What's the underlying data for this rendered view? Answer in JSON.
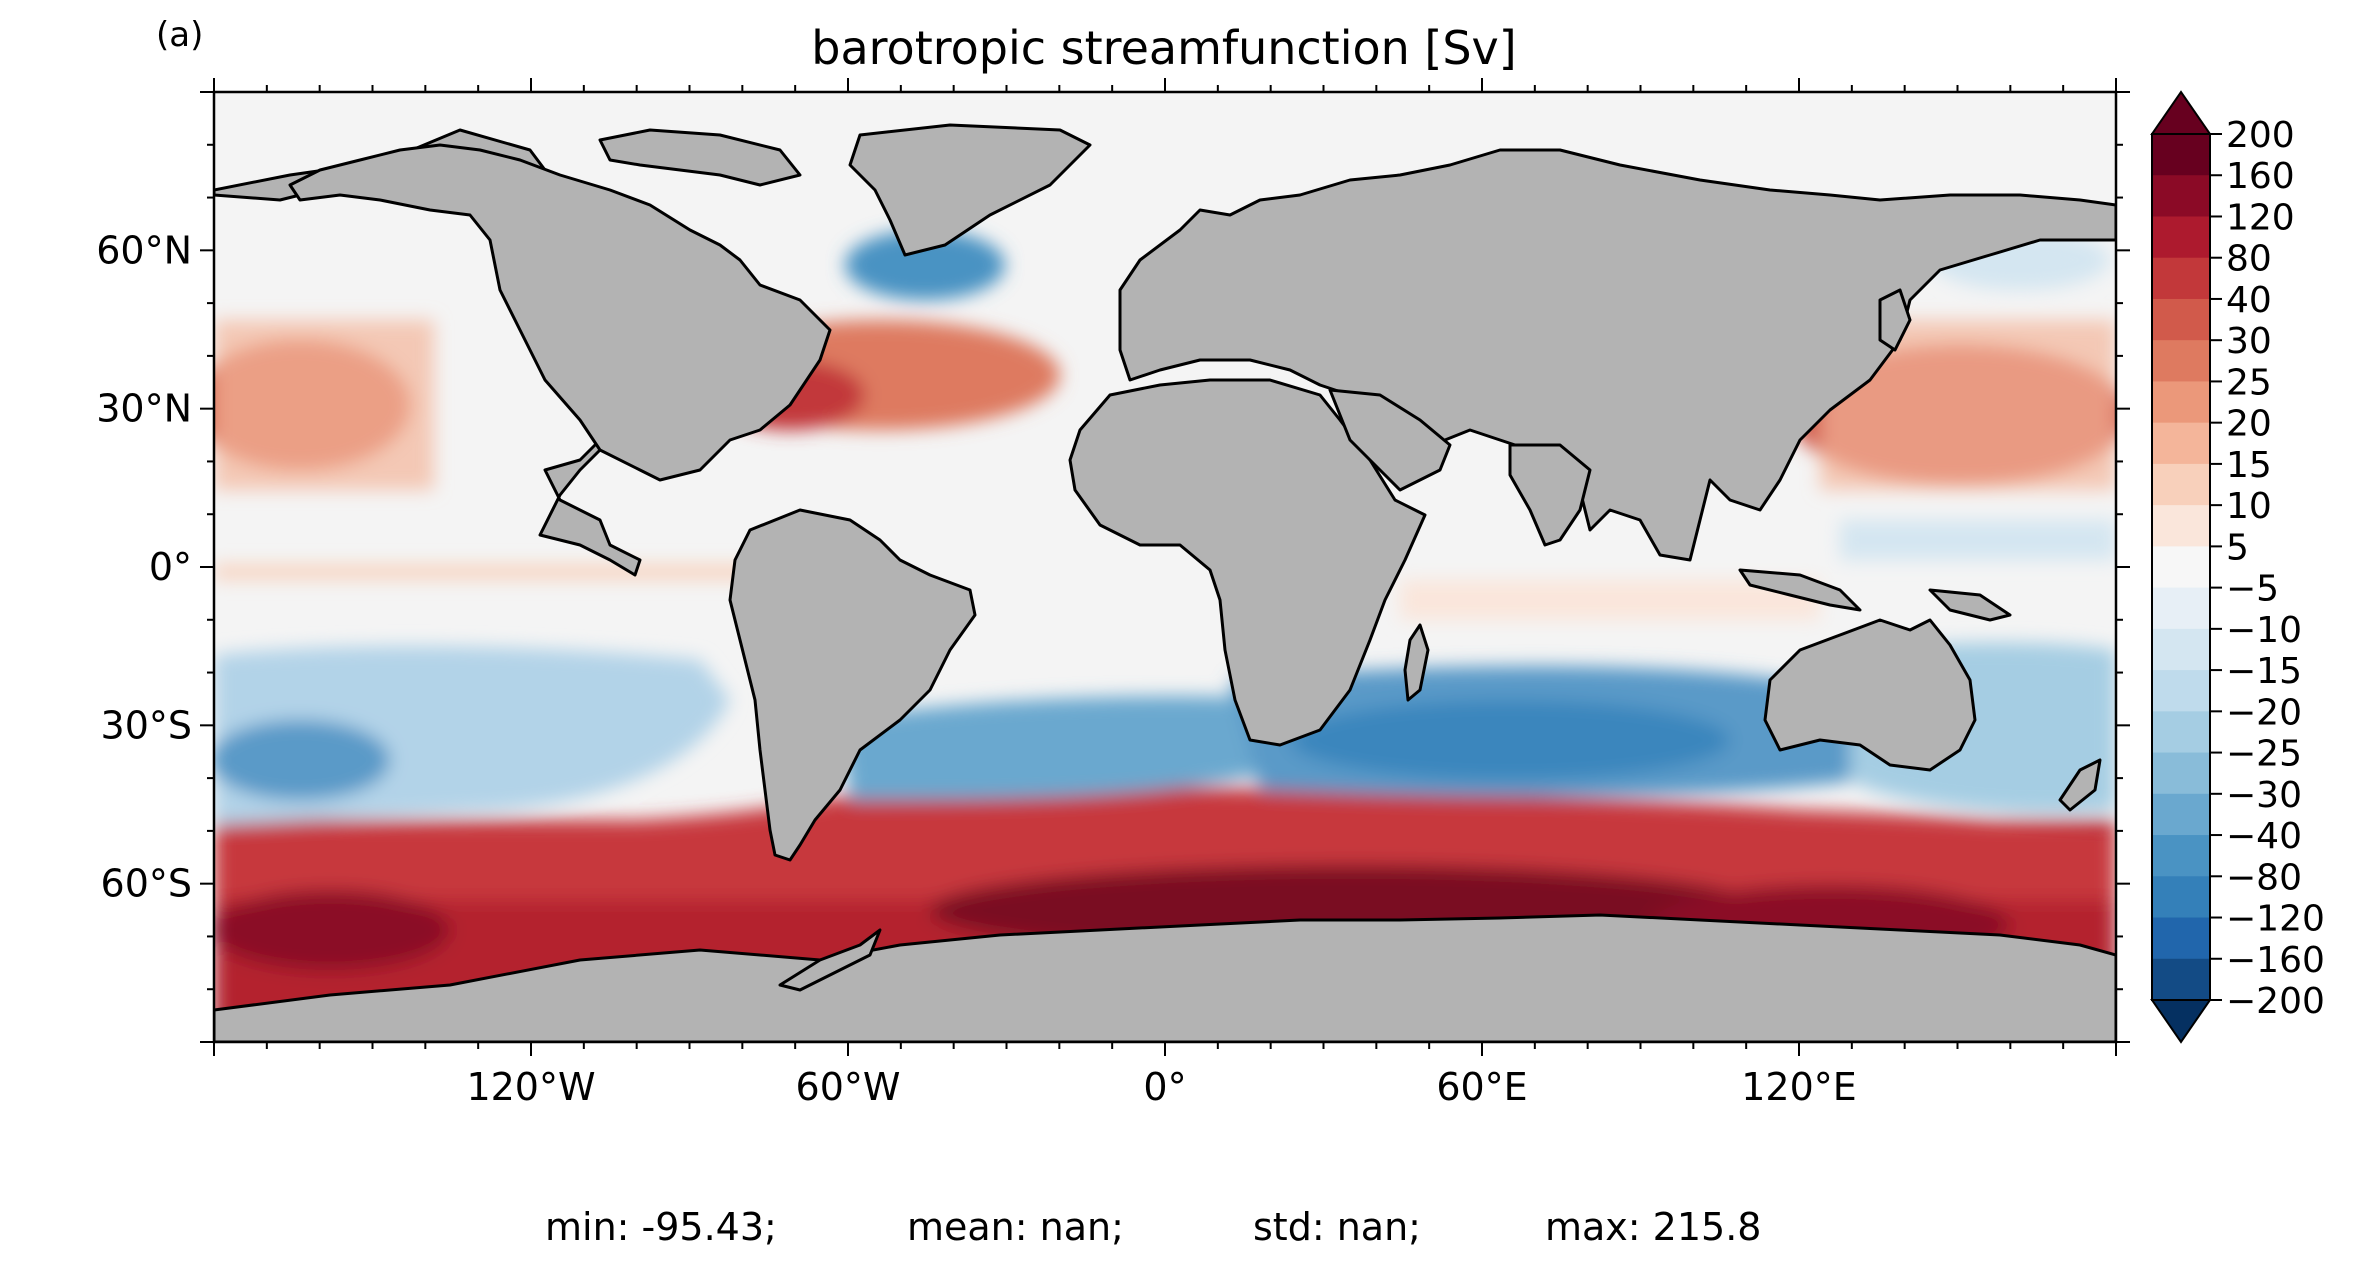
{
  "panel_label": "(a)",
  "title": "barotropic streamfunction [Sv]",
  "map": {
    "projection": "PlateCarree",
    "extent_lon": [
      -180,
      180
    ],
    "extent_lat": [
      -90,
      90
    ],
    "land_color": "#b3b3b3",
    "ocean_fill": "contour field, RdBu_r colormap",
    "lon_tick_labels": [
      {
        "lon": -120,
        "label": "120°W"
      },
      {
        "lon": -60,
        "label": "60°W"
      },
      {
        "lon": 0,
        "label": "0°"
      },
      {
        "lon": 60,
        "label": "60°E"
      },
      {
        "lon": 120,
        "label": "120°E"
      }
    ],
    "lat_tick_labels": [
      {
        "lat": 60,
        "label": "60°N"
      },
      {
        "lat": 30,
        "label": "30°N"
      },
      {
        "lat": 0,
        "label": "0°"
      },
      {
        "lat": -30,
        "label": "30°S"
      },
      {
        "lat": -60,
        "label": "60°S"
      }
    ]
  },
  "colorbar": {
    "extend": "both",
    "levels": [
      "200",
      "160",
      "120",
      "80",
      "40",
      "30",
      "25",
      "20",
      "15",
      "10",
      "5",
      "−5",
      "−10",
      "−15",
      "−20",
      "−25",
      "−30",
      "−40",
      "−80",
      "−120",
      "−160",
      "−200"
    ],
    "colors": [
      "#67001f",
      "#8b0a26",
      "#ad1a2e",
      "#c2383a",
      "#d15a4b",
      "#de7a60",
      "#eb987a",
      "#f4b59a",
      "#f8d0bb",
      "#fae6db",
      "#f7f7f7",
      "#e7eff6",
      "#d4e6f1",
      "#bfdbec",
      "#a5cde3",
      "#89bcd9",
      "#6aa8cf",
      "#4a93c3",
      "#3480b9",
      "#2166ac",
      "#134b85"
    ],
    "extend_low_color": "#053061",
    "extend_high_color": "#67001f"
  },
  "stats": {
    "min": "min: -95.43;",
    "mean": "mean: nan;",
    "std": "std: nan;",
    "max": "max: 215.8"
  }
}
